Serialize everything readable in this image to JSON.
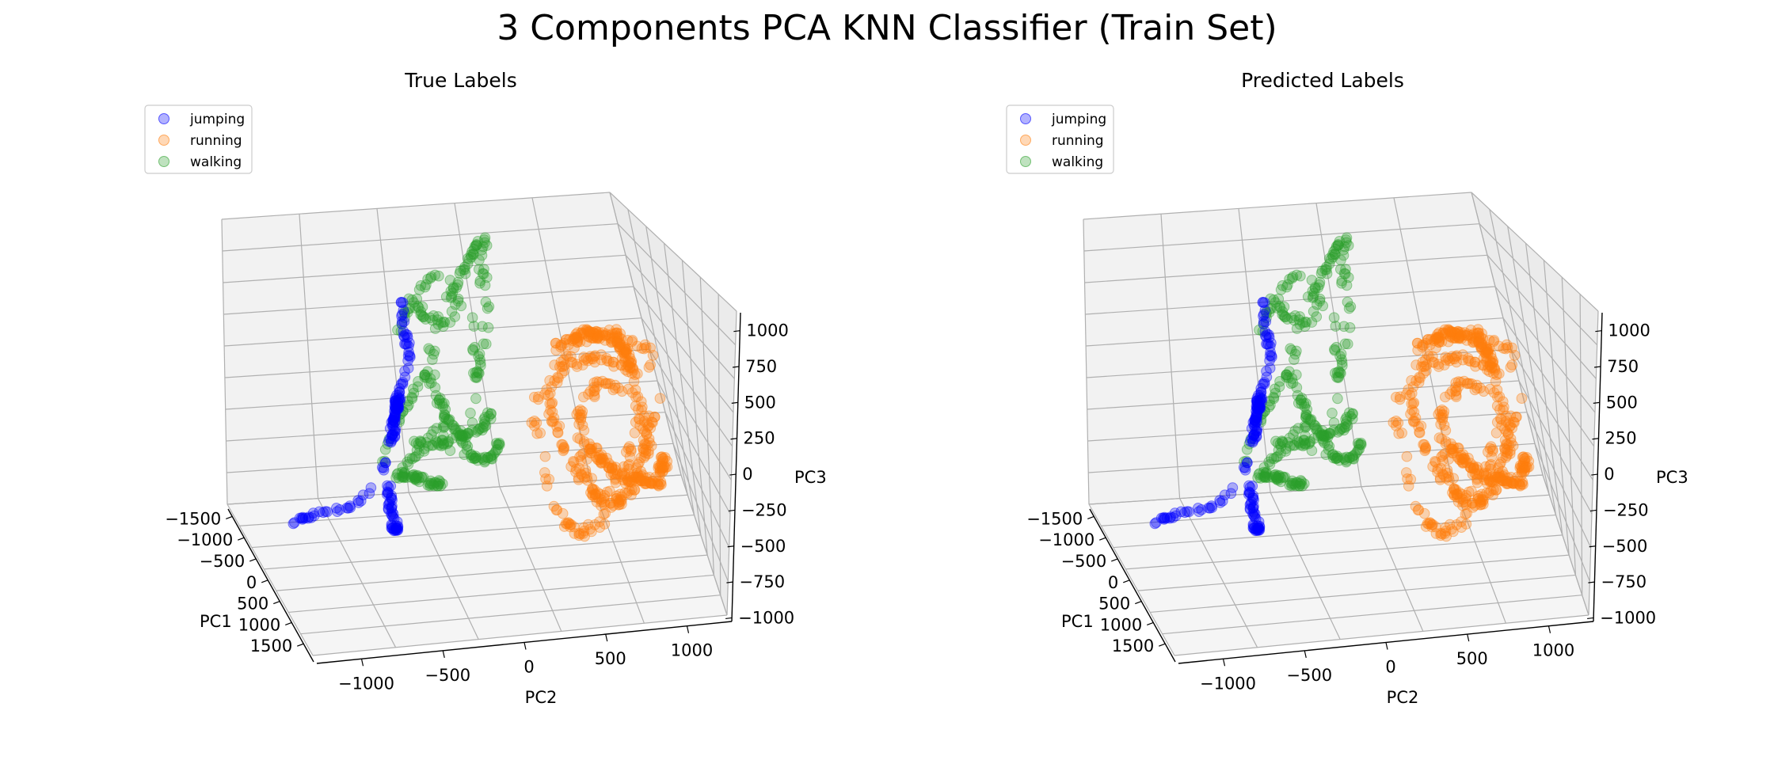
{
  "suptitle": "3 Components PCA KNN Classifier (Train Set)",
  "colors": {
    "jumping": "#0000ff",
    "running": "#ff7f0e",
    "walking": "#2ca02c"
  },
  "chart_data": [
    {
      "type": "scatter",
      "projection": "3d",
      "title": "True Labels",
      "xlabel": "PC1",
      "ylabel": "PC2",
      "zlabel": "PC3",
      "xlim": [
        -1700,
        1700
      ],
      "ylim": [
        -1300,
        1300
      ],
      "zlim": [
        -1000,
        1200
      ],
      "xticks": [
        "−1500",
        "−1000",
        "−500",
        "0",
        "500",
        "1000",
        "1500"
      ],
      "yticks": [
        "−1000",
        "−500",
        "0",
        "500",
        "1000"
      ],
      "zticks": [
        "−1000",
        "−750",
        "−500",
        "−250",
        "0",
        "250",
        "500",
        "750",
        "1000"
      ],
      "grid": true,
      "legend_position": "top-left",
      "series": [
        {
          "name": "jumping",
          "color": "#0000ff",
          "alpha": 0.3
        },
        {
          "name": "running",
          "color": "#ff7f0e",
          "alpha": 0.3
        },
        {
          "name": "walking",
          "color": "#2ca02c",
          "alpha": 0.3
        }
      ]
    },
    {
      "type": "scatter",
      "projection": "3d",
      "title": "Predicted Labels",
      "xlabel": "PC1",
      "ylabel": "PC2",
      "zlabel": "PC3",
      "xlim": [
        -1700,
        1700
      ],
      "ylim": [
        -1300,
        1300
      ],
      "zlim": [
        -1000,
        1200
      ],
      "xticks": [
        "−1500",
        "−1000",
        "−500",
        "0",
        "500",
        "1000",
        "1500"
      ],
      "yticks": [
        "−1000",
        "−500",
        "0",
        "500",
        "1000"
      ],
      "zticks": [
        "−1000",
        "−750",
        "−500",
        "−250",
        "0",
        "250",
        "500",
        "750",
        "1000"
      ],
      "grid": true,
      "legend_position": "top-left",
      "series": [
        {
          "name": "jumping",
          "color": "#0000ff",
          "alpha": 0.3
        },
        {
          "name": "running",
          "color": "#ff7f0e",
          "alpha": 0.3
        },
        {
          "name": "walking",
          "color": "#2ca02c",
          "alpha": 0.3
        }
      ]
    }
  ]
}
